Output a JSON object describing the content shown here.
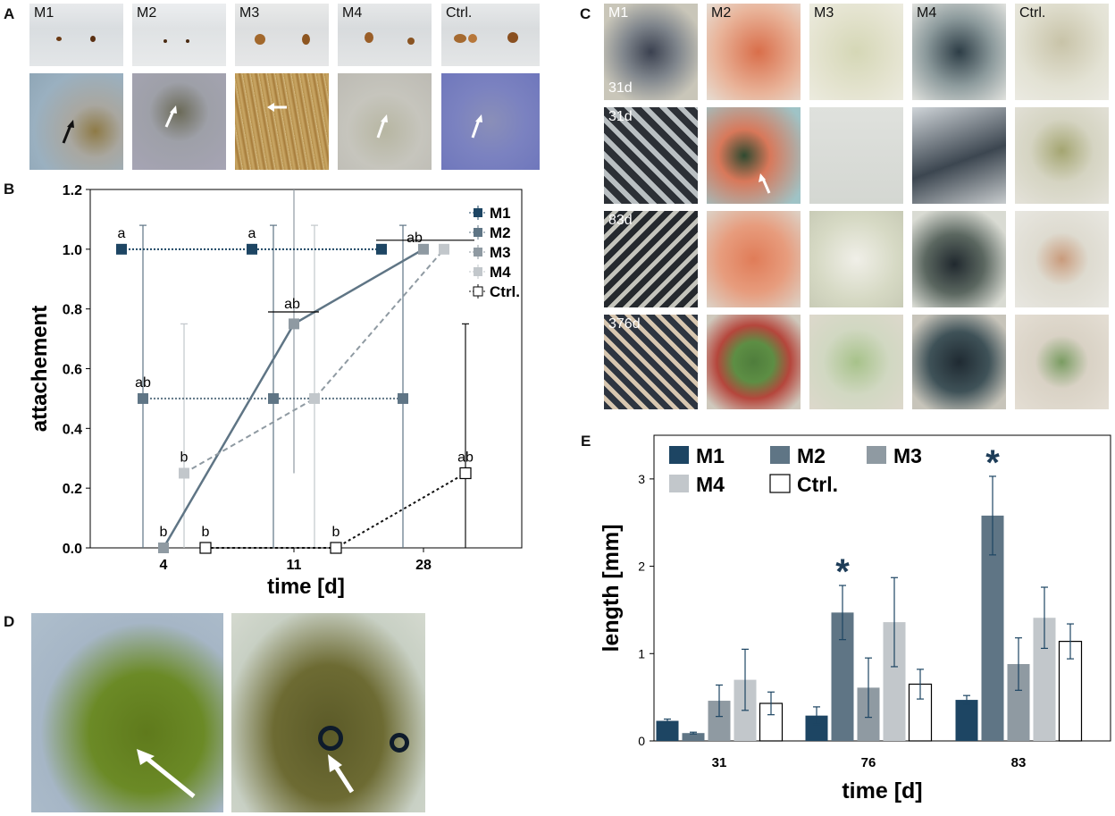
{
  "panels": {
    "A": {
      "letter": "A",
      "labels": [
        "M1",
        "M2",
        "M3",
        "M4",
        "Ctrl."
      ]
    },
    "B": {
      "letter": "B"
    },
    "C": {
      "letter": "C",
      "col_labels": [
        "M1",
        "M2",
        "M3",
        "M4",
        "Ctrl."
      ],
      "row_labels": [
        "31d",
        "31d",
        "83d",
        "376d"
      ]
    },
    "D": {
      "letter": "D"
    },
    "E": {
      "letter": "E"
    }
  },
  "colors": {
    "M1": "#1d4563",
    "M2": "#5f7585",
    "M3": "#8f9aa2",
    "M4": "#c2c7cb",
    "Ctrl": "#ffffff",
    "star": "#1d3c58"
  },
  "chart_data": [
    {
      "type": "line",
      "panel": "B",
      "xlabel": "time [d]",
      "ylabel": "attachement",
      "x_ticks": [
        "4",
        "11",
        "28"
      ],
      "ylim": [
        0,
        1.2
      ],
      "y_ticks": [
        "0.0",
        "0.2",
        "0.4",
        "0.6",
        "0.8",
        "1.0",
        "1.2"
      ],
      "legend": "top-right",
      "series": [
        {
          "name": "M1",
          "x": [
            4,
            11,
            28
          ],
          "values": [
            1.0,
            1.0,
            1.0
          ],
          "err_low": [
            0,
            0,
            0
          ],
          "err_high": [
            0,
            0,
            0
          ],
          "letters": [
            "a",
            "a",
            ""
          ]
        },
        {
          "name": "M2",
          "x": [
            4,
            11,
            28
          ],
          "values": [
            0.5,
            0.5,
            0.5
          ],
          "err_low": [
            0.5,
            0.5,
            0.5
          ],
          "err_high": [
            0.58,
            0.58,
            0.58
          ],
          "letters": [
            "ab",
            "",
            ""
          ]
        },
        {
          "name": "M3",
          "x": [
            4,
            11,
            28
          ],
          "values": [
            0.0,
            0.75,
            1.0
          ],
          "err_low": [
            0,
            0.5,
            0
          ],
          "err_high": [
            0,
            0.45,
            0
          ],
          "letters": [
            "b",
            "ab",
            "ab"
          ]
        },
        {
          "name": "M4",
          "x": [
            4,
            11,
            28
          ],
          "values": [
            0.25,
            0.5,
            1.0
          ],
          "err_low": [
            0.25,
            0.5,
            0
          ],
          "err_high": [
            0.5,
            0.58,
            0
          ],
          "letters": [
            "b",
            "",
            ""
          ]
        },
        {
          "name": "Ctrl.",
          "x": [
            4,
            11,
            28
          ],
          "values": [
            0.0,
            0.0,
            0.25
          ],
          "err_low": [
            0,
            0,
            0.25
          ],
          "err_high": [
            0,
            0,
            0.5
          ],
          "letters": [
            "b",
            "b",
            "ab"
          ]
        }
      ]
    },
    {
      "type": "bar",
      "panel": "E",
      "xlabel": "time [d]",
      "ylabel": "length [mm]",
      "categories": [
        "31",
        "76",
        "83"
      ],
      "ylim": [
        0,
        3.5
      ],
      "y_ticks": [
        "0",
        "1",
        "2",
        "3"
      ],
      "legend": "top-left",
      "star": "*",
      "series": [
        {
          "name": "M1",
          "values": [
            0.23,
            0.29,
            0.47
          ],
          "errors": [
            0.02,
            0.1,
            0.05
          ]
        },
        {
          "name": "M2",
          "values": [
            0.09,
            1.47,
            2.58
          ],
          "errors": [
            0.01,
            0.31,
            0.45
          ],
          "significant": [
            false,
            true,
            true
          ]
        },
        {
          "name": "M3",
          "values": [
            0.46,
            0.61,
            0.88
          ],
          "errors": [
            0.18,
            0.34,
            0.3
          ]
        },
        {
          "name": "M4",
          "values": [
            0.7,
            1.36,
            1.41
          ],
          "errors": [
            0.35,
            0.51,
            0.35
          ]
        },
        {
          "name": "Ctrl.",
          "values": [
            0.43,
            0.65,
            1.14
          ],
          "errors": [
            0.13,
            0.17,
            0.2
          ]
        }
      ]
    }
  ]
}
